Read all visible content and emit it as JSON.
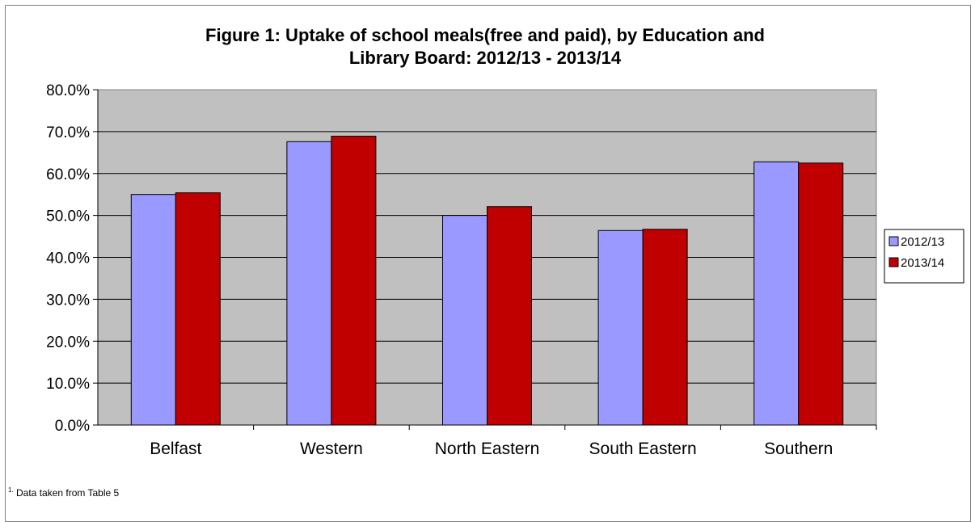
{
  "chart_data": {
    "type": "bar",
    "title_line1": "Figure 1: Uptake of school meals(free and paid), by Education and",
    "title_line2": "Library Board: 2012/13 -  2013/14",
    "categories": [
      "Belfast",
      "Western",
      "North Eastern",
      "South Eastern",
      "Southern"
    ],
    "series": [
      {
        "name": "2012/13",
        "values": [
          55.0,
          67.6,
          50.0,
          46.4,
          62.8
        ],
        "color": "#9999ff"
      },
      {
        "name": "2013/14",
        "values": [
          55.4,
          68.9,
          52.1,
          46.7,
          62.5
        ],
        "color": "#c00000"
      }
    ],
    "ylim": [
      0,
      80
    ],
    "y_ticks": [
      "0.0%",
      "10.0%",
      "20.0%",
      "30.0%",
      "40.0%",
      "50.0%",
      "60.0%",
      "70.0%",
      "80.0%"
    ],
    "grid": true,
    "legend_position": "right",
    "plot_background": "#c0c0c0"
  },
  "footnote": {
    "marker": "1.",
    "text": " Data taken from Table 5"
  }
}
